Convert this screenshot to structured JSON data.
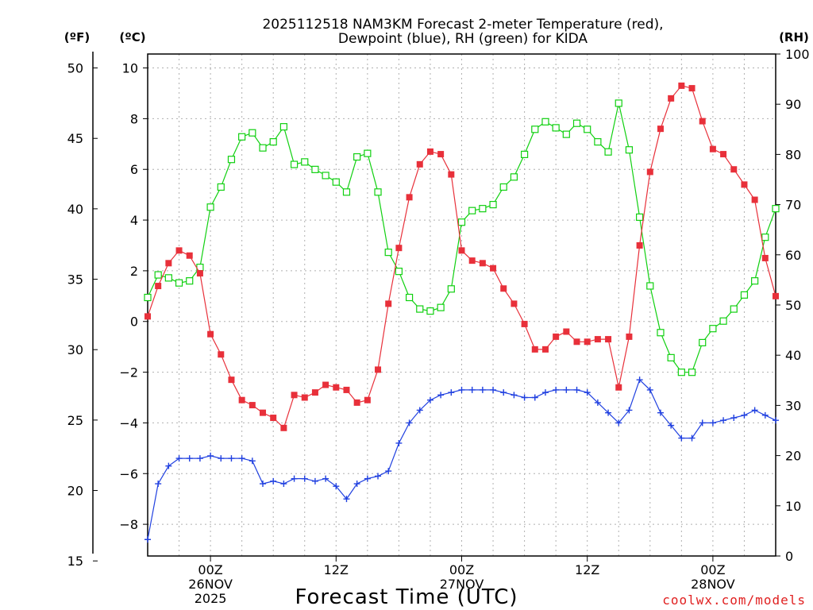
{
  "title_line1": "2025112518 NAM3KM Forecast 2-meter Temperature (red),",
  "title_line2": "Dewpoint (blue), RH (green) for KIDA",
  "unit_f": "(ºF)",
  "unit_c": "(ºC)",
  "unit_rh": "(RH)",
  "xlabel": "Forecast Time (UTC)",
  "credit": "coolwx.com/models",
  "colors": {
    "temp": "#e8303a",
    "dewpoint": "#2040e0",
    "rh": "#10d010",
    "credit": "#e02020"
  },
  "chart_data": {
    "type": "line",
    "title": "2025112518 NAM3KM Forecast 2-meter Temperature (red), Dewpoint (blue), RH (green) for KIDA",
    "xlabel": "Forecast Time (UTC)",
    "x_hours": [
      0,
      1,
      2,
      3,
      4,
      5,
      6,
      7,
      8,
      9,
      10,
      11,
      12,
      13,
      14,
      15,
      16,
      17,
      18,
      19,
      20,
      21,
      22,
      23,
      24,
      25,
      26,
      27,
      28,
      29,
      30,
      31,
      32,
      33,
      34,
      35,
      36,
      37,
      38,
      39,
      40,
      41,
      42,
      43,
      44,
      45,
      46,
      47,
      48,
      49,
      50,
      51,
      52,
      53,
      54,
      55,
      56,
      57,
      58,
      59,
      60
    ],
    "x_ticks": [
      {
        "hour": 6,
        "lines": [
          "00Z",
          "26NOV",
          "2025"
        ]
      },
      {
        "hour": 18,
        "lines": [
          "12Z"
        ]
      },
      {
        "hour": 30,
        "lines": [
          "00Z",
          "27NOV"
        ]
      },
      {
        "hour": 42,
        "lines": [
          "12Z"
        ]
      },
      {
        "hour": 54,
        "lines": [
          "00Z",
          "28NOV"
        ]
      }
    ],
    "y_left_c": {
      "label": "(ºC)",
      "range": [
        -9.25,
        10.55
      ],
      "ticks": [
        -8,
        -6,
        -4,
        -2,
        0,
        2,
        4,
        6,
        8,
        10
      ]
    },
    "y_left_f": {
      "label": "(ºF)",
      "range": [
        15.35,
        50.99
      ],
      "ticks": [
        15,
        20,
        25,
        30,
        35,
        40,
        45,
        50
      ]
    },
    "y_right_rh": {
      "label": "(RH)",
      "range": [
        0,
        100
      ],
      "ticks": [
        0,
        10,
        20,
        30,
        40,
        50,
        60,
        70,
        80,
        90,
        100
      ]
    },
    "grid": true,
    "series": [
      {
        "key": "temp",
        "axis": "c",
        "marker": "filled-square",
        "values": [
          0.2,
          1.4,
          2.3,
          2.8,
          2.6,
          1.9,
          -0.5,
          -1.3,
          -2.3,
          -3.1,
          -3.3,
          -3.6,
          -3.8,
          -4.2,
          -2.9,
          -3.0,
          -2.8,
          -2.5,
          -2.6,
          -2.7,
          -3.2,
          -3.1,
          -1.9,
          0.7,
          2.9,
          4.9,
          6.2,
          6.7,
          6.6,
          5.8,
          2.8,
          2.4,
          2.3,
          2.1,
          1.3,
          0.7,
          -0.1,
          -1.1,
          -1.1,
          -0.6,
          -0.4,
          -0.8,
          -0.8,
          -0.7,
          -0.7,
          -2.6,
          -0.6,
          3.0,
          5.9,
          7.6,
          8.8,
          9.3,
          9.2,
          7.9,
          6.8,
          6.6,
          6.0,
          5.4,
          4.8,
          2.5,
          1.0
        ]
      },
      {
        "key": "dewpoint",
        "axis": "c",
        "marker": "plus",
        "values": [
          -8.6,
          -6.4,
          -5.7,
          -5.4,
          -5.4,
          -5.4,
          -5.3,
          -5.4,
          -5.4,
          -5.4,
          -5.5,
          -6.4,
          -6.3,
          -6.4,
          -6.2,
          -6.2,
          -6.3,
          -6.2,
          -6.5,
          -7.0,
          -6.4,
          -6.2,
          -6.1,
          -5.9,
          -4.8,
          -4.0,
          -3.5,
          -3.1,
          -2.9,
          -2.8,
          -2.7,
          -2.7,
          -2.7,
          -2.7,
          -2.8,
          -2.9,
          -3.0,
          -3.0,
          -2.8,
          -2.7,
          -2.7,
          -2.7,
          -2.8,
          -3.2,
          -3.6,
          -4.0,
          -3.5,
          -2.3,
          -2.7,
          -3.6,
          -4.1,
          -4.6,
          -4.6,
          -4.0,
          -4.0,
          -3.9,
          -3.8,
          -3.7,
          -3.5,
          -3.7,
          -3.9
        ]
      },
      {
        "key": "rh",
        "axis": "rh",
        "marker": "open-square",
        "values": [
          51.5,
          56,
          55.4,
          54.4,
          54.8,
          57.5,
          69.5,
          73.5,
          79,
          83.5,
          84.3,
          81.3,
          82.5,
          85.5,
          78,
          78.5,
          77,
          75.8,
          74.5,
          72.5,
          79.5,
          80.2,
          72.5,
          60.5,
          56.7,
          51.5,
          49.2,
          48.8,
          49.5,
          53.2,
          66.5,
          68.8,
          69.2,
          70,
          73.5,
          75.5,
          80,
          85,
          86.5,
          85.3,
          84,
          86.2,
          85,
          82.5,
          80.5,
          90.2,
          80.9,
          67.5,
          53.8,
          44.5,
          39.5,
          36.6,
          36.6,
          42.5,
          45.3,
          46.8,
          49.2,
          52,
          54.8,
          63.5,
          69.2
        ]
      }
    ]
  }
}
